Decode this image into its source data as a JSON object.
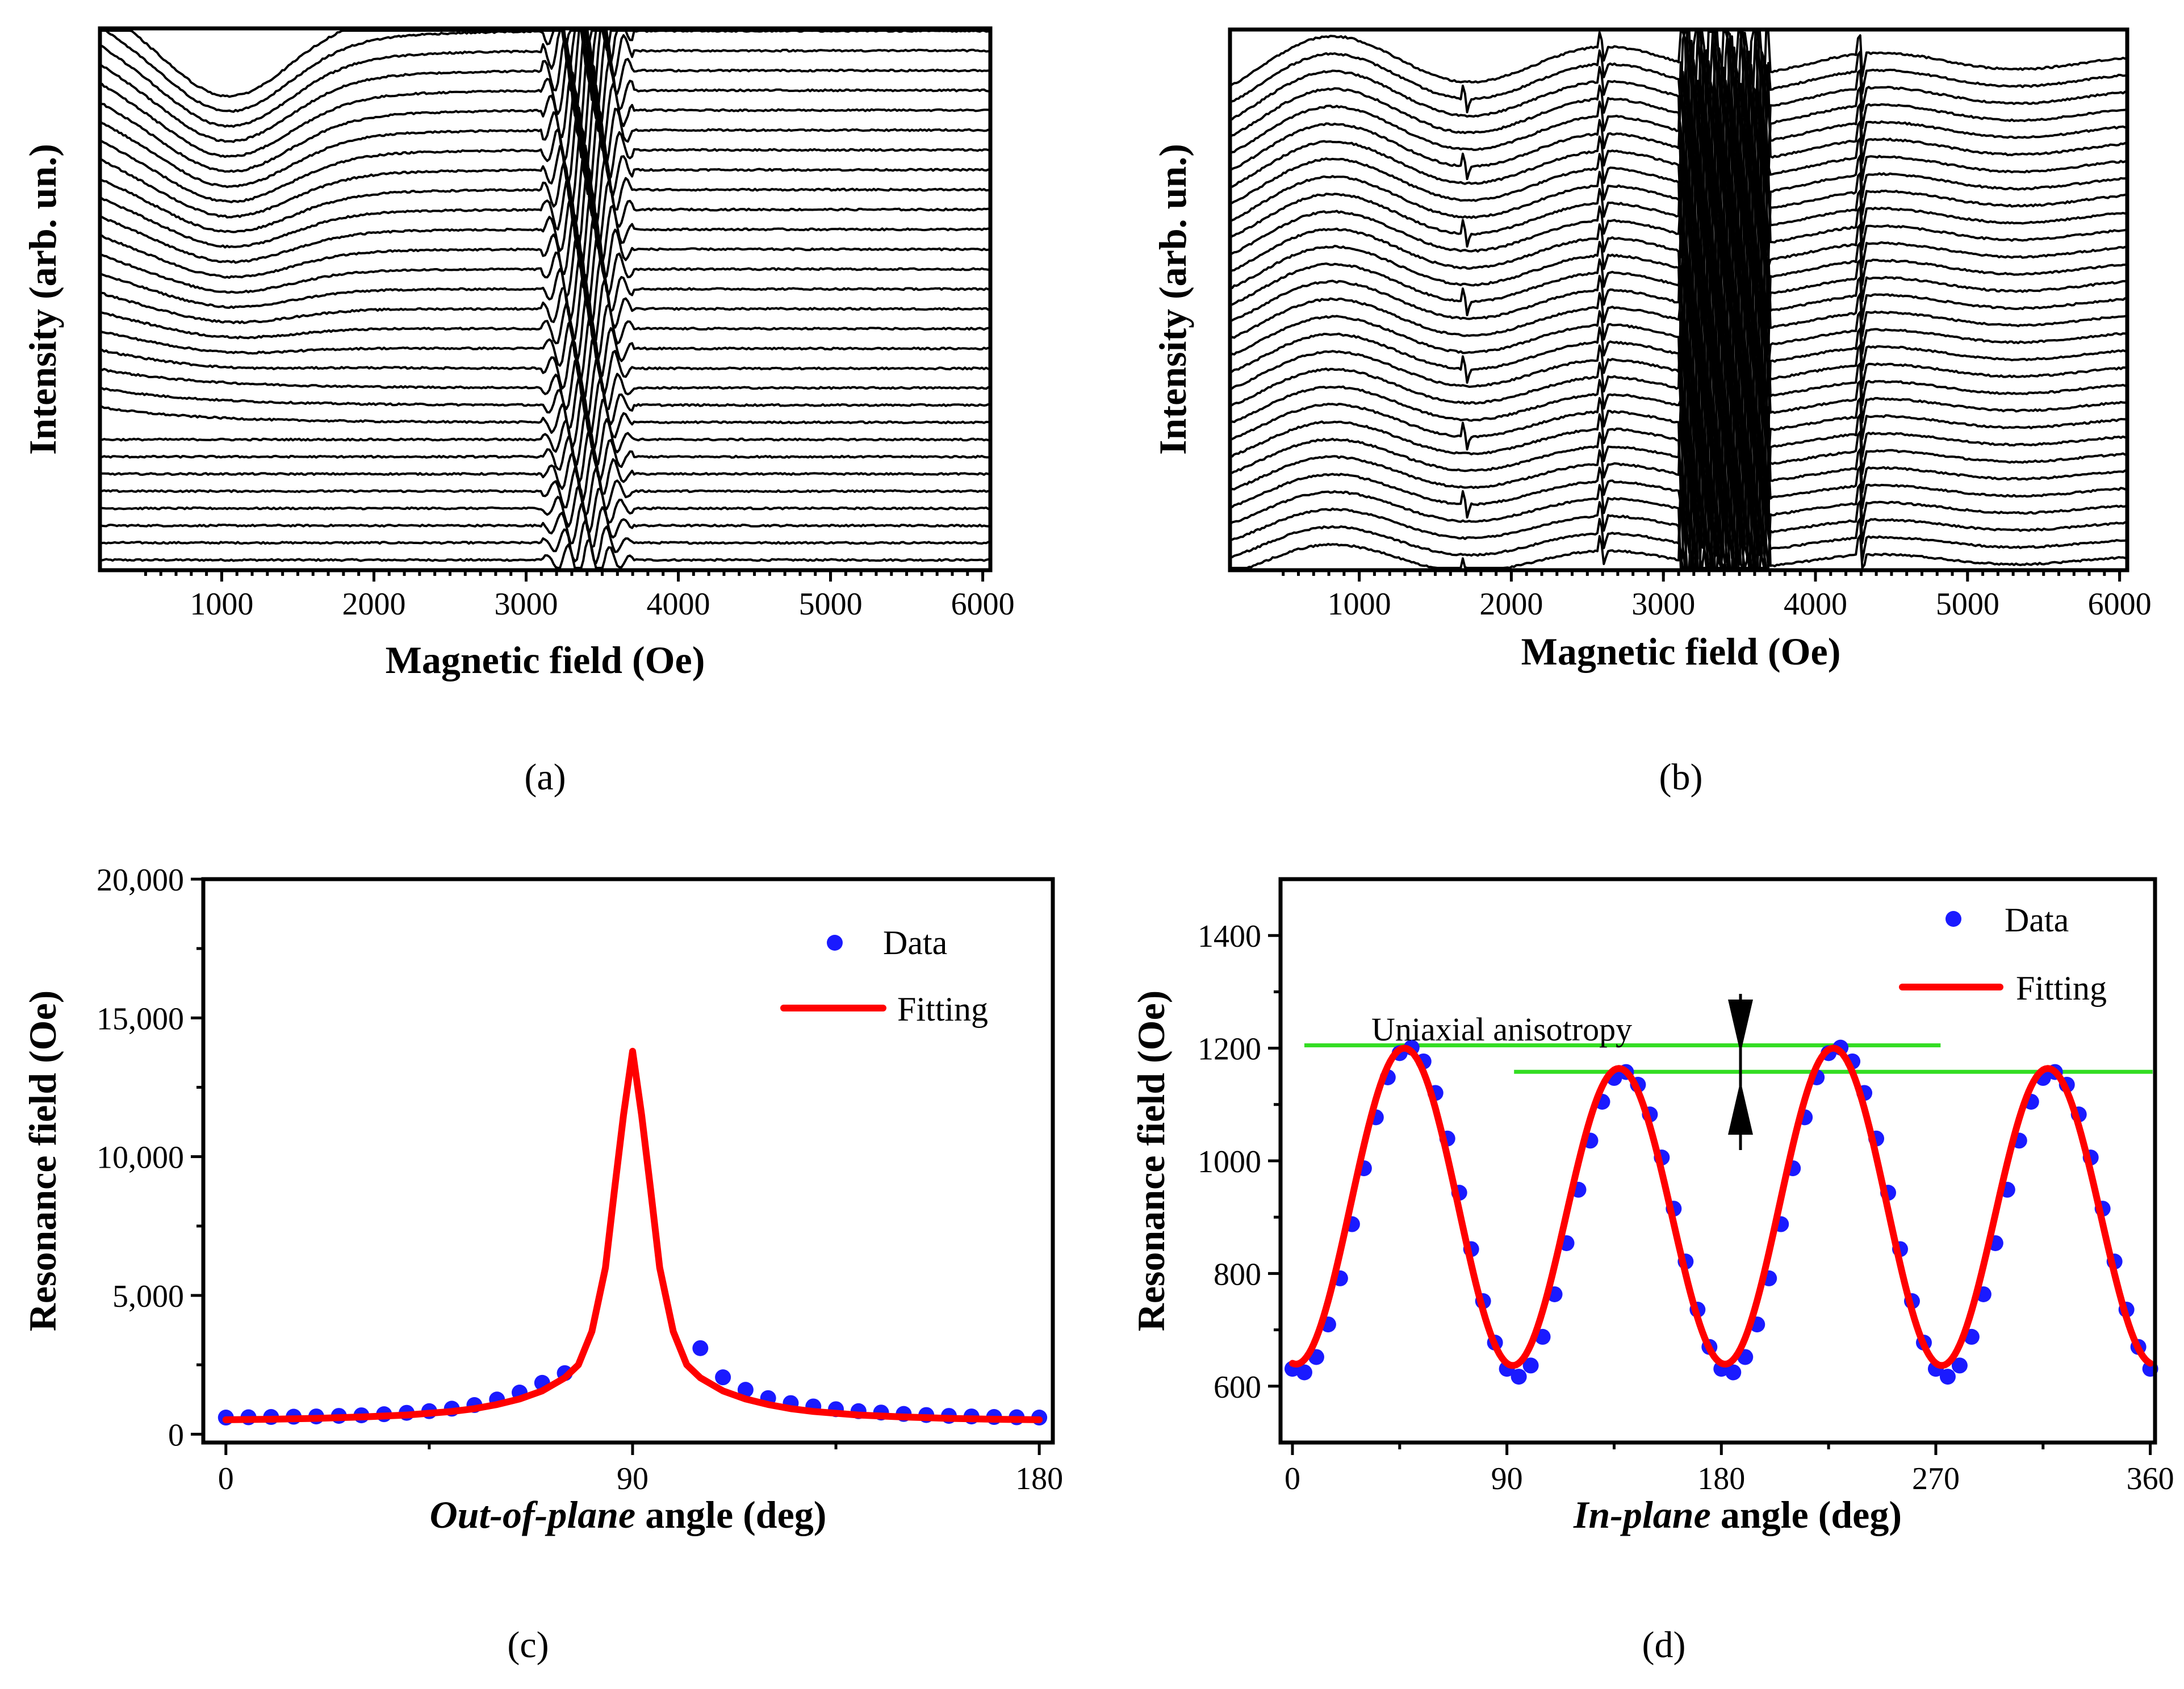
{
  "chart_data": [
    {
      "id": "a",
      "type": "line",
      "panel_label": "a",
      "xlabel": "Magnetic field (Oe)",
      "ylabel": "Intensity (arb. un.)",
      "xlim": [
        200,
        6050
      ],
      "xticks": [
        1000,
        2000,
        3000,
        4000,
        5000,
        6000
      ],
      "xtick_labels": [
        "1000",
        "2000",
        "3000",
        "4000",
        "5000",
        "6000"
      ],
      "n_traces": 30,
      "description_values": {
        "broad_min_field": 1050,
        "sharp_region": [
          3100,
          3700
        ]
      }
    },
    {
      "id": "b",
      "type": "line",
      "panel_label": "b",
      "xlabel": "Magnetic field (Oe)",
      "ylabel": "Intensity (arb. un.)",
      "xlim": [
        150,
        6050
      ],
      "xticks": [
        1000,
        2000,
        3000,
        4000,
        5000,
        6000
      ],
      "xtick_labels": [
        "1000",
        "2000",
        "3000",
        "4000",
        "5000",
        "6000"
      ],
      "n_traces": 30,
      "description_values": {
        "sharp_region": [
          3100,
          3700
        ],
        "line_at": 4300
      }
    },
    {
      "id": "c",
      "type": "scatter",
      "panel_label": "c",
      "xlabel_italic": "Out-of-plane",
      "xlabel_rest": " angle (deg)",
      "ylabel": "Resonance field (Oe)",
      "xlim": [
        -5,
        183
      ],
      "ylim": [
        -300,
        20000
      ],
      "xticks": [
        0,
        90,
        180
      ],
      "xtick_labels": [
        "0",
        "90",
        "180"
      ],
      "yticks": [
        0,
        5000,
        10000,
        15000,
        20000
      ],
      "ytick_labels": [
        "0",
        "5,000",
        "10,000",
        "15,000",
        "20,000"
      ],
      "legend": {
        "data_label": "Data",
        "fit_label": "Fitting",
        "position": "top-right"
      },
      "series": [
        {
          "name": "Data",
          "x": [
            0,
            5,
            10,
            15,
            20,
            25,
            30,
            35,
            40,
            45,
            50,
            55,
            60,
            65,
            70,
            75,
            105,
            110,
            115,
            120,
            125,
            130,
            135,
            140,
            145,
            150,
            155,
            160,
            165,
            170,
            175,
            180
          ],
          "y": [
            600,
            610,
            620,
            630,
            640,
            660,
            680,
            720,
            770,
            830,
            920,
            1050,
            1250,
            1500,
            1850,
            2200,
            3100,
            2050,
            1600,
            1300,
            1120,
            1000,
            900,
            830,
            780,
            730,
            690,
            660,
            640,
            620,
            610,
            600
          ]
        },
        {
          "name": "Fitting",
          "x": [
            0,
            10,
            20,
            30,
            40,
            50,
            55,
            60,
            65,
            70,
            75,
            78,
            81,
            84,
            86,
            88,
            90,
            92,
            94,
            96,
            99,
            102,
            105,
            110,
            115,
            120,
            125,
            130,
            140,
            150,
            160,
            170,
            180
          ],
          "y": [
            520,
            540,
            570,
            620,
            690,
            820,
            920,
            1070,
            1270,
            1560,
            2030,
            2500,
            3700,
            6000,
            8800,
            11500,
            13800,
            11500,
            8800,
            6000,
            3700,
            2500,
            2030,
            1560,
            1270,
            1070,
            920,
            820,
            690,
            620,
            570,
            540,
            520
          ]
        }
      ]
    },
    {
      "id": "d",
      "type": "scatter",
      "panel_label": "d",
      "xlabel_italic": "In-plane",
      "xlabel_rest": " angle (deg)",
      "ylabel": "Resonance field (Oe)",
      "xlim": [
        -5,
        362
      ],
      "ylim": [
        500,
        1500
      ],
      "xticks": [
        0,
        90,
        180,
        270,
        360
      ],
      "xtick_labels": [
        "0",
        "90",
        "180",
        "270",
        "360"
      ],
      "yticks": [
        600,
        800,
        1000,
        1200,
        1400
      ],
      "ytick_labels": [
        "600",
        "800",
        "1000",
        "1200",
        "1400"
      ],
      "legend": {
        "data_label": "Data",
        "fit_label": "Fitting",
        "position": "top-right"
      },
      "annotation": "Uniaxial anisotropy",
      "green_lines": [
        {
          "x_from": 5,
          "x_to": 272,
          "y": 1205
        },
        {
          "x_from": 93,
          "x_to": 361,
          "y": 1158
        }
      ],
      "fit_model": {
        "mean": 910,
        "amp4": 272,
        "amp2": 18,
        "phase_deg": -2
      },
      "data_model": {
        "mean": 900,
        "amp4": 280,
        "amp2": 22,
        "shift_deg": 4
      }
    }
  ],
  "panel_labels": {
    "a": "(a)",
    "b": "(b)",
    "c": "(c)",
    "d": "(d)"
  }
}
